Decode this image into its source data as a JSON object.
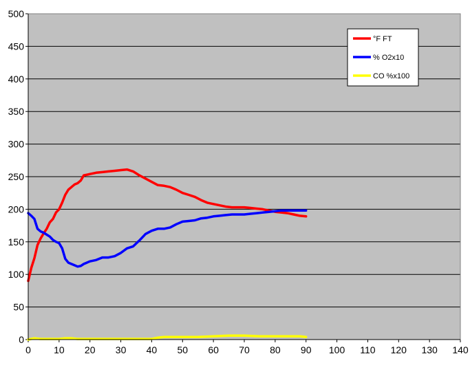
{
  "chart_data": {
    "type": "line",
    "title": "",
    "xlabel": "",
    "ylabel": "",
    "xlim": [
      0,
      140
    ],
    "ylim": [
      0,
      500
    ],
    "x_ticks": [
      0,
      10,
      20,
      30,
      40,
      50,
      60,
      70,
      80,
      90,
      100,
      110,
      120,
      130,
      140
    ],
    "y_ticks": [
      0,
      50,
      100,
      150,
      200,
      250,
      300,
      350,
      400,
      450,
      500
    ],
    "x_tick_labels": [
      "0",
      "10",
      "20",
      "30",
      "40",
      "50",
      "60",
      "70",
      "80",
      "90",
      "100",
      "110",
      "120",
      "130",
      "140"
    ],
    "y_tick_labels": [
      "0",
      "50",
      "100",
      "150",
      "200",
      "250",
      "300",
      "350",
      "400",
      "450",
      "500"
    ],
    "grid": "horizontal",
    "plot_background": "#C0C0C0",
    "legend_position": "top-right",
    "series": [
      {
        "name": "°F FT",
        "color": "#FF0000",
        "points": [
          [
            0,
            90
          ],
          [
            1,
            110
          ],
          [
            2,
            125
          ],
          [
            3,
            145
          ],
          [
            4,
            155
          ],
          [
            5,
            163
          ],
          [
            6,
            170
          ],
          [
            7,
            180
          ],
          [
            8,
            185
          ],
          [
            9,
            195
          ],
          [
            10,
            200
          ],
          [
            11,
            210
          ],
          [
            12,
            222
          ],
          [
            13,
            230
          ],
          [
            14,
            234
          ],
          [
            15,
            238
          ],
          [
            16,
            240
          ],
          [
            17,
            244
          ],
          [
            18,
            252
          ],
          [
            19,
            253
          ],
          [
            20,
            254
          ],
          [
            22,
            256
          ],
          [
            24,
            257
          ],
          [
            26,
            258
          ],
          [
            28,
            259
          ],
          [
            30,
            260
          ],
          [
            32,
            261
          ],
          [
            34,
            258
          ],
          [
            36,
            252
          ],
          [
            38,
            247
          ],
          [
            40,
            242
          ],
          [
            42,
            237
          ],
          [
            44,
            236
          ],
          [
            46,
            234
          ],
          [
            48,
            230
          ],
          [
            50,
            225
          ],
          [
            52,
            222
          ],
          [
            54,
            219
          ],
          [
            56,
            214
          ],
          [
            58,
            210
          ],
          [
            60,
            208
          ],
          [
            62,
            206
          ],
          [
            64,
            204
          ],
          [
            66,
            203
          ],
          [
            68,
            203
          ],
          [
            70,
            203
          ],
          [
            72,
            202
          ],
          [
            74,
            201
          ],
          [
            76,
            200
          ],
          [
            78,
            198
          ],
          [
            80,
            196
          ],
          [
            82,
            195
          ],
          [
            84,
            194
          ],
          [
            86,
            192
          ],
          [
            88,
            190
          ],
          [
            90,
            189
          ]
        ]
      },
      {
        "name": "% O2x10",
        "color": "#0000FF",
        "points": [
          [
            0,
            194
          ],
          [
            1,
            190
          ],
          [
            2,
            185
          ],
          [
            3,
            170
          ],
          [
            4,
            166
          ],
          [
            5,
            164
          ],
          [
            6,
            161
          ],
          [
            7,
            158
          ],
          [
            8,
            153
          ],
          [
            9,
            150
          ],
          [
            10,
            148
          ],
          [
            11,
            140
          ],
          [
            12,
            124
          ],
          [
            13,
            118
          ],
          [
            14,
            116
          ],
          [
            15,
            114
          ],
          [
            16,
            112
          ],
          [
            17,
            113
          ],
          [
            18,
            116
          ],
          [
            19,
            118
          ],
          [
            20,
            120
          ],
          [
            22,
            122
          ],
          [
            24,
            126
          ],
          [
            26,
            126
          ],
          [
            28,
            128
          ],
          [
            30,
            133
          ],
          [
            32,
            140
          ],
          [
            34,
            143
          ],
          [
            36,
            152
          ],
          [
            38,
            162
          ],
          [
            40,
            167
          ],
          [
            42,
            170
          ],
          [
            44,
            170
          ],
          [
            46,
            172
          ],
          [
            48,
            177
          ],
          [
            50,
            181
          ],
          [
            52,
            182
          ],
          [
            54,
            183
          ],
          [
            56,
            186
          ],
          [
            58,
            187
          ],
          [
            60,
            189
          ],
          [
            62,
            190
          ],
          [
            64,
            191
          ],
          [
            66,
            192
          ],
          [
            68,
            192
          ],
          [
            70,
            192
          ],
          [
            72,
            193
          ],
          [
            74,
            194
          ],
          [
            76,
            195
          ],
          [
            78,
            196
          ],
          [
            80,
            197
          ],
          [
            82,
            198
          ],
          [
            84,
            198
          ],
          [
            86,
            198
          ],
          [
            88,
            198
          ],
          [
            90,
            198
          ]
        ]
      },
      {
        "name": "CO %x100",
        "color": "#FFFF00",
        "points": [
          [
            0,
            0
          ],
          [
            2,
            2
          ],
          [
            4,
            1
          ],
          [
            6,
            1
          ],
          [
            8,
            1
          ],
          [
            10,
            1
          ],
          [
            12,
            2
          ],
          [
            14,
            2
          ],
          [
            16,
            1
          ],
          [
            20,
            1
          ],
          [
            30,
            1
          ],
          [
            40,
            1
          ],
          [
            42,
            3
          ],
          [
            44,
            4
          ],
          [
            46,
            4
          ],
          [
            50,
            4
          ],
          [
            55,
            4
          ],
          [
            60,
            5
          ],
          [
            65,
            6
          ],
          [
            70,
            6
          ],
          [
            75,
            5
          ],
          [
            80,
            5
          ],
          [
            85,
            5
          ],
          [
            88,
            5
          ],
          [
            90,
            4
          ]
        ]
      }
    ]
  }
}
